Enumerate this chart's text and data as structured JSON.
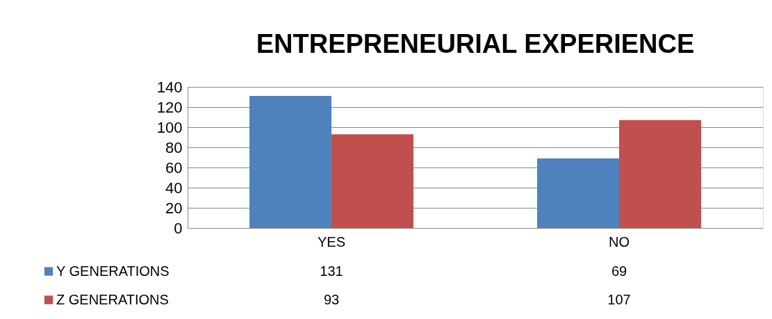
{
  "chart_data": {
    "type": "bar",
    "title": "ENTREPRENEURIAL  EXPERIENCE",
    "categories": [
      "YES",
      "NO"
    ],
    "series": [
      {
        "name": "Y GENERATIONS",
        "color": "#4f81bd",
        "values": [
          131,
          69
        ]
      },
      {
        "name": "Z GENERATIONS",
        "color": "#c0504d",
        "values": [
          93,
          107
        ]
      }
    ],
    "ylim": [
      0,
      140
    ],
    "yticks": [
      0,
      20,
      40,
      60,
      80,
      100,
      120,
      140
    ],
    "grid": "y",
    "legend": "bottom",
    "data_labels": true
  }
}
